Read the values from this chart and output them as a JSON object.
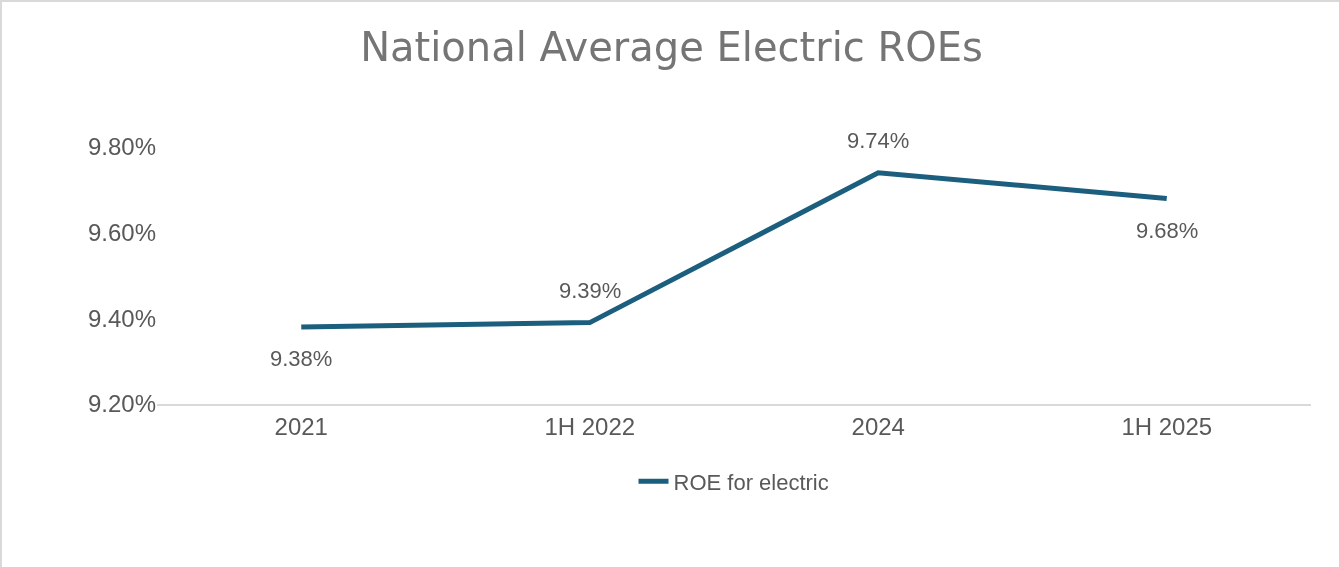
{
  "chart_data": {
    "type": "line",
    "title": "National Average Electric ROEs",
    "categories": [
      "2021",
      "1H 2022",
      "2024",
      "1H 2025"
    ],
    "series": [
      {
        "name": "ROE for electric",
        "color": "#1b5e7e",
        "values": [
          9.38,
          9.39,
          9.74,
          9.68
        ],
        "value_labels": [
          "9.38%",
          "9.39%",
          "9.74%",
          "9.68%"
        ]
      }
    ],
    "ylim": [
      9.2,
      9.8
    ],
    "yticks": [
      {
        "value": 9.2,
        "label": "9.20%"
      },
      {
        "value": 9.4,
        "label": "9.40%"
      },
      {
        "value": 9.6,
        "label": "9.60%"
      },
      {
        "value": 9.8,
        "label": "9.80%"
      }
    ],
    "grid": false,
    "legend": "bottom",
    "marker": "none",
    "line_style": "solid"
  }
}
